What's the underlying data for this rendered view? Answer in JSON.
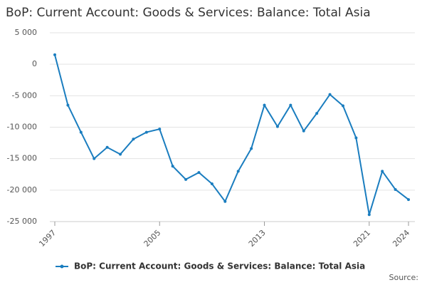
{
  "chart_data": {
    "type": "line",
    "title": "BoP: Current Account: Goods & Services: Balance: Total Asia",
    "x": [
      1997,
      1998,
      1999,
      2000,
      2001,
      2002,
      2003,
      2004,
      2005,
      2006,
      2007,
      2008,
      2009,
      2010,
      2011,
      2012,
      2013,
      2014,
      2015,
      2016,
      2017,
      2018,
      2019,
      2020,
      2021,
      2022,
      2023,
      2024
    ],
    "series": [
      {
        "name": "BoP: Current Account: Goods & Services: Balance: Total Asia",
        "color": "#1a7dbf",
        "values": [
          1500,
          -6500,
          -10800,
          -15000,
          -13200,
          -14300,
          -11900,
          -10800,
          -10300,
          -16200,
          -18300,
          -17200,
          -19000,
          -21800,
          -17000,
          -13400,
          -6500,
          -9900,
          -6500,
          -10600,
          -7800,
          -4800,
          -6600,
          -11700,
          -23900,
          -17000,
          -19900,
          -21500
        ]
      }
    ],
    "xlim": [
      1997,
      2024
    ],
    "xticks": [
      1997,
      2005,
      2013,
      2021,
      2024
    ],
    "ylim": [
      -25000,
      5000
    ],
    "yticks": [
      {
        "value": -25000,
        "label": "-25 000"
      },
      {
        "value": -20000,
        "label": "-20 000"
      },
      {
        "value": -15000,
        "label": "-15 000"
      },
      {
        "value": -10000,
        "label": "-10 000"
      },
      {
        "value": -5000,
        "label": "-5 000"
      },
      0,
      {
        "value": 5000,
        "label": "5 000"
      }
    ],
    "grid": true,
    "legend": "bottom",
    "source": "Source:"
  }
}
